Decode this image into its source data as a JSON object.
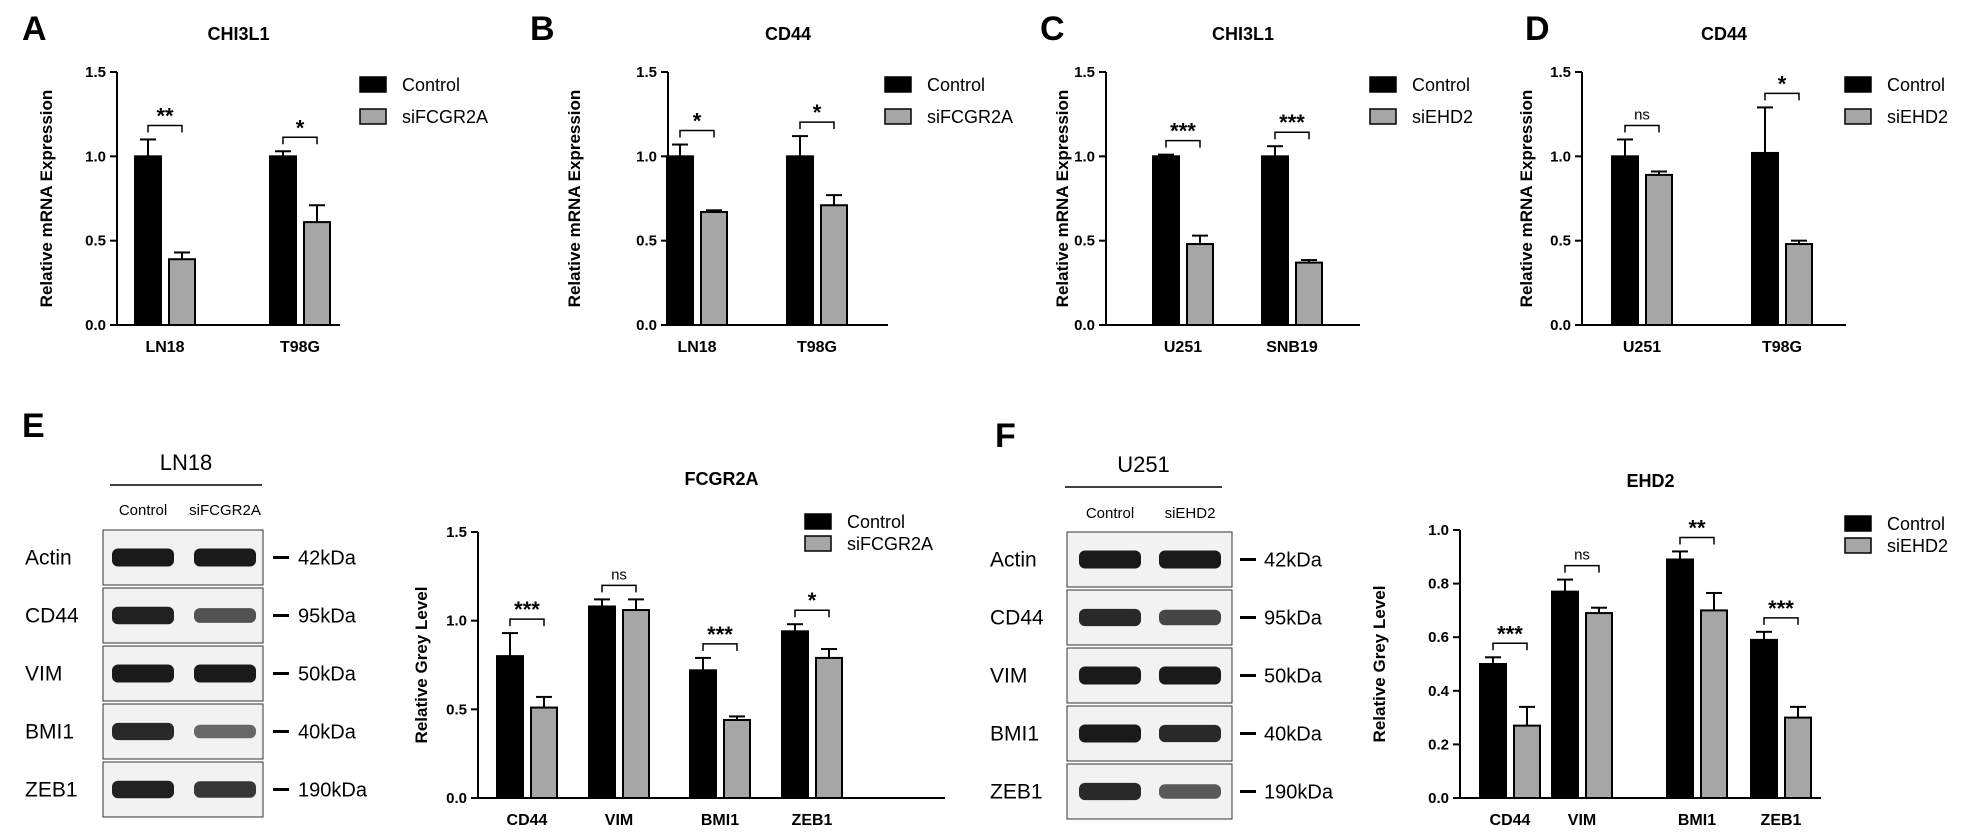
{
  "colors": {
    "control": "#000000",
    "treated": "#a6a6a6",
    "axis": "#000000",
    "blot_bg": "#f2f2f2",
    "band": "#1a1a1a"
  },
  "chart_data": [
    {
      "panel": "A",
      "type": "bar",
      "title": "CHI3L1",
      "ylabel": "Relative mRNA Expression",
      "ylim": [
        0,
        1.5
      ],
      "yticks": [
        "0.0",
        "0.5",
        "1.0",
        "1.5"
      ],
      "categories": [
        "LN18",
        "T98G"
      ],
      "series": [
        {
          "name": "Control",
          "values": [
            1.0,
            1.0
          ],
          "errors": [
            0.1,
            0.03
          ]
        },
        {
          "name": "siFCGR2A",
          "values": [
            0.39,
            0.61
          ],
          "errors": [
            0.04,
            0.1
          ]
        }
      ],
      "significance": [
        "**",
        "*"
      ],
      "legend": "top-right"
    },
    {
      "panel": "B",
      "type": "bar",
      "title": "CD44",
      "ylabel": "Relative mRNA Expression",
      "ylim": [
        0,
        1.5
      ],
      "yticks": [
        "0.0",
        "0.5",
        "1.0",
        "1.5"
      ],
      "categories": [
        "LN18",
        "T98G"
      ],
      "series": [
        {
          "name": "Control",
          "values": [
            1.0,
            1.0
          ],
          "errors": [
            0.07,
            0.12
          ]
        },
        {
          "name": "siFCGR2A",
          "values": [
            0.67,
            0.71
          ],
          "errors": [
            0.01,
            0.06
          ]
        }
      ],
      "significance": [
        "*",
        "*"
      ],
      "legend": "top-right"
    },
    {
      "panel": "C",
      "type": "bar",
      "title": "CHI3L1",
      "ylabel": "Relative mRNA Expression",
      "ylim": [
        0,
        1.5
      ],
      "yticks": [
        "0.0",
        "0.5",
        "1.0",
        "1.5"
      ],
      "categories": [
        "U251",
        "SNB19"
      ],
      "series": [
        {
          "name": "Control",
          "values": [
            1.0,
            1.0
          ],
          "errors": [
            0.01,
            0.06
          ]
        },
        {
          "name": "siEHD2",
          "values": [
            0.48,
            0.37
          ],
          "errors": [
            0.05,
            0.015
          ]
        }
      ],
      "significance": [
        "***",
        "***"
      ],
      "legend": "top-right"
    },
    {
      "panel": "D",
      "type": "bar",
      "title": "CD44",
      "ylabel": "Relative mRNA Expression",
      "ylim": [
        0,
        1.5
      ],
      "yticks": [
        "0.0",
        "0.5",
        "1.0",
        "1.5"
      ],
      "categories": [
        "U251",
        "T98G"
      ],
      "series": [
        {
          "name": "Control",
          "values": [
            1.0,
            1.02
          ],
          "errors": [
            0.1,
            0.27
          ]
        },
        {
          "name": "siEHD2",
          "values": [
            0.89,
            0.48
          ],
          "errors": [
            0.02,
            0.02
          ]
        }
      ],
      "significance": [
        "ns",
        "*"
      ],
      "legend": "top-right"
    },
    {
      "panel": "E",
      "type": "bar",
      "title": "FCGR2A",
      "ylabel": "Relative Grey Level",
      "ylim": [
        0,
        1.5
      ],
      "yticks": [
        "0.0",
        "0.5",
        "1.0",
        "1.5"
      ],
      "categories": [
        "CD44",
        "VIM",
        "BMI1",
        "ZEB1"
      ],
      "series": [
        {
          "name": "Control",
          "values": [
            0.8,
            1.08,
            0.72,
            0.94
          ],
          "errors": [
            0.13,
            0.04,
            0.07,
            0.04
          ]
        },
        {
          "name": "siFCGR2A",
          "values": [
            0.51,
            1.06,
            0.44,
            0.79
          ],
          "errors": [
            0.06,
            0.06,
            0.02,
            0.05
          ]
        }
      ],
      "significance": [
        "***",
        "ns",
        "***",
        "*"
      ],
      "legend": "top-right"
    },
    {
      "panel": "F",
      "type": "bar",
      "title": "EHD2",
      "ylabel": "Relative Grey Level",
      "ylim": [
        0,
        1.0
      ],
      "yticks": [
        "0.0",
        "0.2",
        "0.4",
        "0.6",
        "0.8",
        "1.0"
      ],
      "categories": [
        "CD44",
        "VIM",
        "BMI1",
        "ZEB1"
      ],
      "series": [
        {
          "name": "Control",
          "values": [
            0.5,
            0.77,
            0.89,
            0.59
          ],
          "errors": [
            0.025,
            0.045,
            0.03,
            0.03
          ]
        },
        {
          "name": "siEHD2",
          "values": [
            0.27,
            0.69,
            0.7,
            0.3
          ],
          "errors": [
            0.07,
            0.02,
            0.065,
            0.04
          ]
        }
      ],
      "significance": [
        "***",
        "ns",
        "**",
        "***"
      ],
      "legend": "top-right"
    }
  ],
  "blots": [
    {
      "panel": "E",
      "cell_line": "LN18",
      "lanes": [
        "Control",
        "siFCGR2A"
      ],
      "rows": [
        {
          "protein": "Actin",
          "size": "42kDa",
          "intensity": [
            1.0,
            1.0
          ]
        },
        {
          "protein": "CD44",
          "size": "95kDa",
          "intensity": [
            0.95,
            0.6
          ]
        },
        {
          "protein": "VIM",
          "size": "50kDa",
          "intensity": [
            1.0,
            1.0
          ]
        },
        {
          "protein": "BMI1",
          "size": "40kDa",
          "intensity": [
            0.9,
            0.45
          ]
        },
        {
          "protein": "ZEB1",
          "size": "190kDa",
          "intensity": [
            0.95,
            0.8
          ]
        }
      ]
    },
    {
      "panel": "F",
      "cell_line": "U251",
      "lanes": [
        "Control",
        "siEHD2"
      ],
      "rows": [
        {
          "protein": "Actin",
          "size": "42kDa",
          "intensity": [
            1.0,
            1.0
          ]
        },
        {
          "protein": "CD44",
          "size": "95kDa",
          "intensity": [
            0.9,
            0.7
          ]
        },
        {
          "protein": "VIM",
          "size": "50kDa",
          "intensity": [
            1.0,
            1.0
          ]
        },
        {
          "protein": "BMI1",
          "size": "40kDa",
          "intensity": [
            1.0,
            0.9
          ]
        },
        {
          "protein": "ZEB1",
          "size": "190kDa",
          "intensity": [
            0.9,
            0.55
          ]
        }
      ]
    }
  ]
}
